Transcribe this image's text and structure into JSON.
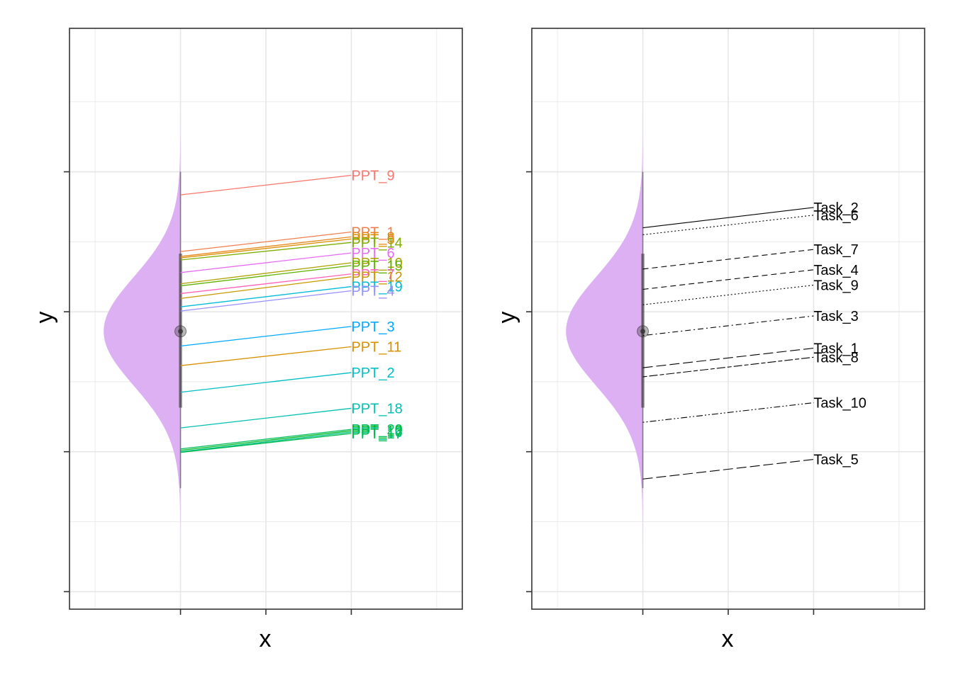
{
  "colors": {
    "density_fill": "#DDB0F3",
    "grid": "#E6E6E6",
    "panel_border": "#333333",
    "point": "#333333",
    "right_lines": "#000000"
  },
  "chart_data": [
    {
      "type": "line",
      "panel": "left",
      "xlabel": "x",
      "ylabel": "y",
      "tick_labels": "hidden",
      "grid": true,
      "legend": "none",
      "x_positions": [
        1,
        2
      ],
      "xlim": [
        0.35,
        2.65
      ],
      "ylim": [
        -4.25,
        4.05
      ],
      "y_ticks": [
        -4,
        -2,
        0,
        2
      ],
      "density": {
        "mean": -0.28,
        "sd": 0.78,
        "y_range": [
          -3.65,
          3.15
        ],
        "half_width": 0.45
      },
      "summary": {
        "mean": -0.28,
        "interval_thick": [
          -1.37,
          0.83
        ],
        "interval_thin": [
          -2.52,
          2.0
        ]
      },
      "series": [
        {
          "name": "PPT_9",
          "color": "#F8766D",
          "y": [
            1.67,
            1.95
          ]
        },
        {
          "name": "PPT_1",
          "color": "#F17E4C",
          "y": [
            0.86,
            1.14
          ]
        },
        {
          "name": "PPT_8",
          "color": "#E7861B",
          "y": [
            0.79,
            1.07
          ]
        },
        {
          "name": "PPT_5",
          "color": "#DB8E00",
          "y": [
            0.77,
            1.04
          ]
        },
        {
          "name": "PPT_14",
          "color": "#7CAE00",
          "y": [
            0.74,
            0.99
          ]
        },
        {
          "name": "PPT_6",
          "color": "#E76BF3",
          "y": [
            0.56,
            0.84
          ]
        },
        {
          "name": "PPT_10",
          "color": "#AEA200",
          "y": [
            0.4,
            0.7
          ]
        },
        {
          "name": "PPT_15",
          "color": "#5EB300",
          "y": [
            0.37,
            0.66
          ]
        },
        {
          "name": "PPT_7",
          "color": "#FF62BC",
          "y": [
            0.26,
            0.54
          ]
        },
        {
          "name": "PPT_12",
          "color": "#C99800",
          "y": [
            0.19,
            0.5
          ]
        },
        {
          "name": "PPT_19",
          "color": "#00BCD8",
          "y": [
            0.07,
            0.36
          ]
        },
        {
          "name": "PPT_4",
          "color": "#9590FF",
          "y": [
            0.01,
            0.3
          ]
        },
        {
          "name": "PPT_3",
          "color": "#00A9FF",
          "y": [
            -0.49,
            -0.21
          ]
        },
        {
          "name": "PPT_11",
          "color": "#D89000",
          "y": [
            -0.77,
            -0.5
          ]
        },
        {
          "name": "PPT_2",
          "color": "#00BFC4",
          "y": [
            -1.15,
            -0.87
          ]
        },
        {
          "name": "PPT_18",
          "color": "#00C0AF",
          "y": [
            -1.66,
            -1.38
          ]
        },
        {
          "name": "PPT_20",
          "color": "#00BD5F",
          "y": [
            -1.96,
            -1.68
          ]
        },
        {
          "name": "PPT_13",
          "color": "#00B81F",
          "y": [
            -1.98,
            -1.7
          ]
        },
        {
          "name": "PPT_16",
          "color": "#00C08B",
          "y": [
            -2.0,
            -1.72
          ]
        },
        {
          "name": "PPT_17",
          "color": "#00BB4E",
          "y": [
            -2.01,
            -1.74
          ]
        }
      ]
    },
    {
      "type": "line",
      "panel": "right",
      "xlabel": "x",
      "ylabel": "y",
      "tick_labels": "hidden",
      "grid": true,
      "legend": "none",
      "x_positions": [
        1,
        2
      ],
      "xlim": [
        0.35,
        2.65
      ],
      "ylim": [
        -4.25,
        4.05
      ],
      "y_ticks": [
        -4,
        -2,
        0,
        2
      ],
      "density": {
        "mean": -0.28,
        "sd": 0.78,
        "y_range": [
          -4.1,
          3.45
        ],
        "half_width": 0.45
      },
      "summary": {
        "mean": -0.28,
        "interval_thick": [
          -1.37,
          0.83
        ],
        "interval_thin": [
          -2.52,
          2.0
        ]
      },
      "series": [
        {
          "name": "Task_2",
          "linetype": "solid",
          "y": [
            1.2,
            1.49
          ]
        },
        {
          "name": "Task_6",
          "linetype": "dotted",
          "y": [
            1.1,
            1.38
          ]
        },
        {
          "name": "Task_7",
          "linetype": "dashed",
          "y": [
            0.61,
            0.89
          ]
        },
        {
          "name": "Task_4",
          "linetype": "dashed",
          "y": [
            0.32,
            0.6
          ]
        },
        {
          "name": "Task_9",
          "linetype": "dotted",
          "y": [
            0.1,
            0.38
          ]
        },
        {
          "name": "Task_3",
          "linetype": "dotdash",
          "y": [
            -0.34,
            -0.06
          ]
        },
        {
          "name": "Task_1",
          "linetype": "longdash",
          "y": [
            -0.8,
            -0.52
          ]
        },
        {
          "name": "Task_8",
          "linetype": "twodash",
          "y": [
            -0.93,
            -0.65
          ]
        },
        {
          "name": "Task_10",
          "linetype": "dotdash2",
          "y": [
            -1.58,
            -1.3
          ]
        },
        {
          "name": "Task_5",
          "linetype": "longdash",
          "y": [
            -2.39,
            -2.11
          ]
        }
      ]
    }
  ]
}
